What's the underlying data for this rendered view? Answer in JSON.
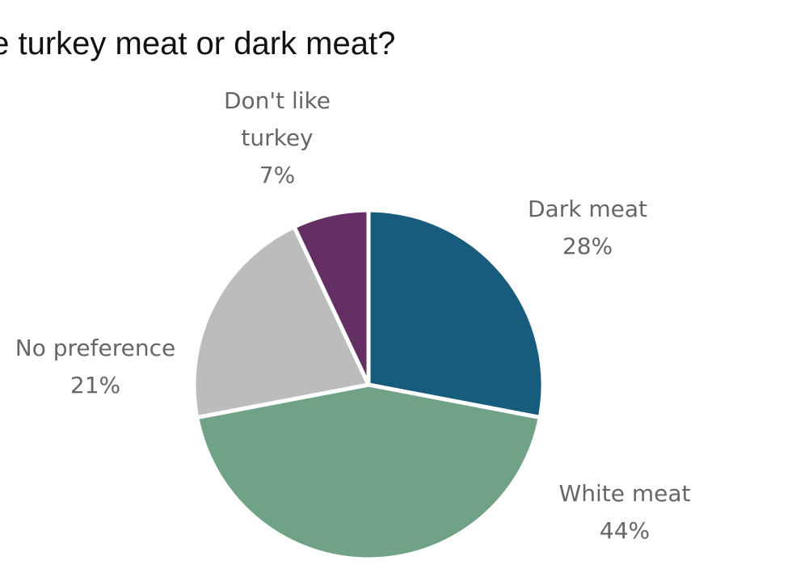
{
  "chart_data": {
    "type": "pie",
    "title": "te turkey meat or dark meat?",
    "slices": [
      {
        "name": "Dark meat",
        "value": 28,
        "label": "28%",
        "color": "#185c7d"
      },
      {
        "name": "White meat",
        "value": 44,
        "label": "44%",
        "color": "#6fa287"
      },
      {
        "name": "No preference",
        "value": 21,
        "label": "21%",
        "color": "#bcbcbc"
      },
      {
        "name": "Don't like turkey",
        "value": 7,
        "label": "7%",
        "color": "#642f63"
      }
    ],
    "start_angle_deg": 0,
    "direction": "clockwise",
    "legend": "none",
    "separator_color": "#ffffff"
  }
}
